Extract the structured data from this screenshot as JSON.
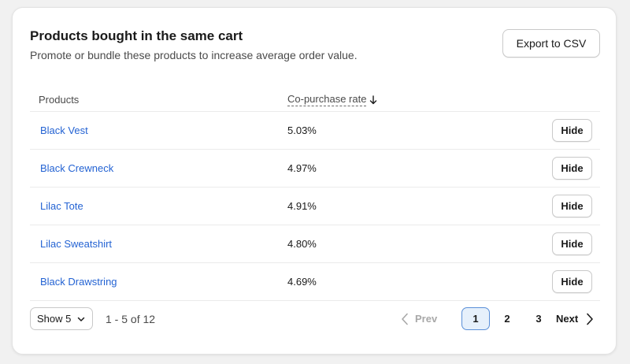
{
  "header": {
    "title": "Products bought in the same cart",
    "subtitle": "Promote or bundle these products to increase average order value.",
    "export_label": "Export to CSV"
  },
  "table": {
    "columns": {
      "products": "Products",
      "rate": "Co-purchase rate"
    },
    "sort_icon": "arrow-down-icon",
    "rows": [
      {
        "product": "Black Vest",
        "rate": "5.03%",
        "action": "Hide"
      },
      {
        "product": "Black Crewneck",
        "rate": "4.97%",
        "action": "Hide"
      },
      {
        "product": "Lilac Tote",
        "rate": "4.91%",
        "action": "Hide"
      },
      {
        "product": "Lilac Sweatshirt",
        "rate": "4.80%",
        "action": "Hide"
      },
      {
        "product": "Black Drawstring",
        "rate": "4.69%",
        "action": "Hide"
      }
    ]
  },
  "footer": {
    "show_label": "Show 5",
    "range_text": "1 - 5 of 12",
    "prev_label": "Prev",
    "next_label": "Next",
    "pages": [
      "1",
      "2",
      "3"
    ],
    "active_page": "1"
  },
  "colors": {
    "link": "#2463d3",
    "active_page_bg": "#e6f0fb",
    "active_page_border": "#5a8fd8",
    "disabled": "#a8a8a8"
  }
}
